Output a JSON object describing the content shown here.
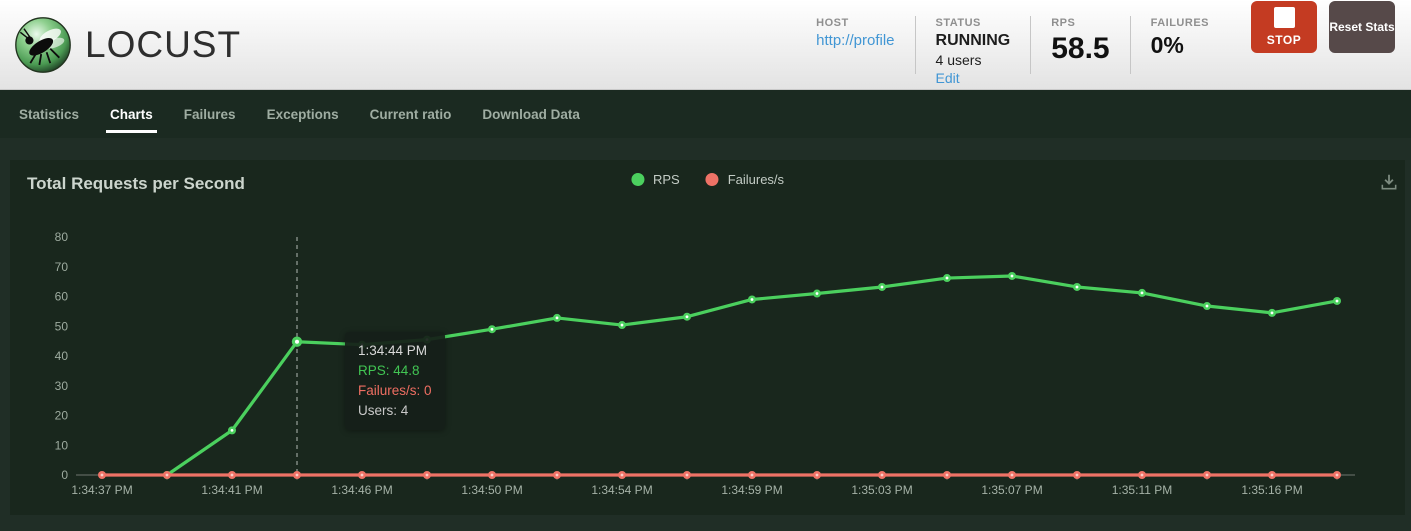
{
  "header": {
    "logo_text": "LOCUST",
    "host_label": "HOST",
    "host_value": "http://profile",
    "status_label": "STATUS",
    "status_value": "RUNNING",
    "status_users": "4 users",
    "edit_label": "Edit",
    "rps_label": "RPS",
    "rps_value": "58.5",
    "failures_label": "FAILURES",
    "failures_value": "0%",
    "stop_label": "STOP",
    "reset_label": "Reset Stats"
  },
  "nav": {
    "tabs": [
      {
        "label": "Statistics",
        "active": false
      },
      {
        "label": "Charts",
        "active": true
      },
      {
        "label": "Failures",
        "active": false
      },
      {
        "label": "Exceptions",
        "active": false
      },
      {
        "label": "Current ratio",
        "active": false
      },
      {
        "label": "Download Data",
        "active": false
      }
    ]
  },
  "chart": {
    "title": "Total Requests per Second",
    "tooltip": {
      "time": "1:34:44 PM",
      "rps_line": "RPS: 44.8",
      "failures_line": "Failures/s: 0",
      "users_line": "Users: 4"
    }
  },
  "chart_data": {
    "type": "line",
    "title": "Total Requests per Second",
    "x": [
      "1:34:37 PM",
      "1:34:39 PM",
      "1:34:41 PM",
      "1:34:44 PM",
      "1:34:46 PM",
      "1:34:48 PM",
      "1:34:50 PM",
      "1:34:52 PM",
      "1:34:54 PM",
      "1:34:57 PM",
      "1:34:59 PM",
      "1:35:01 PM",
      "1:35:03 PM",
      "1:35:05 PM",
      "1:35:07 PM",
      "1:35:09 PM",
      "1:35:11 PM",
      "1:35:13 PM",
      "1:35:16 PM",
      "1:35:18 PM"
    ],
    "x_tick_labels": [
      "1:34:37 PM",
      "1:34:41 PM",
      "1:34:46 PM",
      "1:34:50 PM",
      "1:34:54 PM",
      "1:34:59 PM",
      "1:35:03 PM",
      "1:35:07 PM",
      "1:35:11 PM",
      "1:35:16 PM"
    ],
    "y_ticks": [
      0,
      10,
      20,
      30,
      40,
      50,
      60,
      70,
      80
    ],
    "ylim": [
      0,
      80
    ],
    "grid": false,
    "legend_position": "top-center",
    "series": [
      {
        "name": "RPS",
        "color": "#4bd05e",
        "values": [
          null,
          0,
          15,
          44.8,
          43.8,
          45.5,
          49,
          52.8,
          50.4,
          53.2,
          59,
          61,
          63.2,
          66.2,
          66.9,
          63.2,
          61.2,
          56.8,
          54.5,
          58.5
        ]
      },
      {
        "name": "Failures/s",
        "color": "#ee7266",
        "values": [
          0,
          0,
          0,
          0,
          0,
          0,
          0,
          0,
          0,
          0,
          0,
          0,
          0,
          0,
          0,
          0,
          0,
          0,
          0,
          0
        ]
      }
    ],
    "highlight": {
      "point_index": 3,
      "time": "1:34:44 PM",
      "rps": 44.8,
      "failures_per_s": 0,
      "users": 4
    }
  },
  "colors": {
    "rps_green": "#4bd05e",
    "failures_red": "#ee7266",
    "stop_red": "#c43b22",
    "reset_gray": "#564949",
    "link_blue": "#4196d4",
    "nav_bg": "#1b2a21",
    "panel_bg": "#19271d",
    "page_bg": "#202e26"
  }
}
